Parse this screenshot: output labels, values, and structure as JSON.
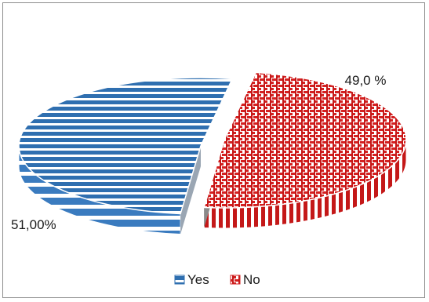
{
  "chart_data": {
    "type": "pie",
    "style": "3d-exploded",
    "categories": [
      "Yes",
      "No"
    ],
    "values": [
      51.0,
      49.0
    ],
    "data_labels": [
      "51,00%",
      "49,0 %"
    ],
    "legend": {
      "placement": "bottom",
      "entries": [
        "Yes",
        "No"
      ]
    },
    "colors": {
      "Yes": "#2f6fb0",
      "No": "#d42020",
      "stripe_light": "#ffffff"
    },
    "title": ""
  }
}
